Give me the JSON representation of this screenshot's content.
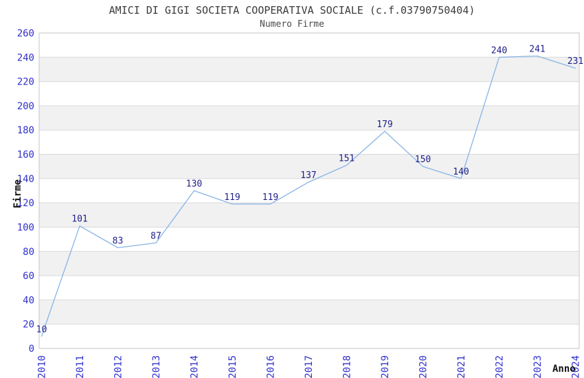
{
  "chart_data": {
    "type": "line",
    "title": "AMICI DI GIGI SOCIETA COOPERATIVA SOCIALE (c.f.03790750404)",
    "subtitle": "Numero Firme",
    "xlabel": "Anno",
    "ylabel": "Firme",
    "categories": [
      "2010",
      "2011",
      "2012",
      "2013",
      "2014",
      "2015",
      "2016",
      "2017",
      "2018",
      "2019",
      "2020",
      "2021",
      "2022",
      "2023",
      "2024"
    ],
    "values": [
      10,
      101,
      83,
      87,
      130,
      119,
      119,
      137,
      151,
      179,
      150,
      140,
      240,
      241,
      231
    ],
    "ylim": [
      0,
      260
    ],
    "ytick_step": 20,
    "yticks": [
      0,
      20,
      40,
      60,
      80,
      100,
      120,
      140,
      160,
      180,
      200,
      220,
      240,
      260
    ],
    "grid": true,
    "legend": "none",
    "x_tick_rotation": -90,
    "colors": {
      "line": "#87b4e6",
      "tick_label": "#3030cc",
      "data_label": "#20208a",
      "band": "#f1f1f1",
      "grid_line": "#d9d9d9",
      "plot_border": "#c6c6c6",
      "plot_background": "#ffffff",
      "title": "#3b3b3b",
      "subtitle": "#4a4a4a",
      "axis_title": "#111111"
    }
  }
}
